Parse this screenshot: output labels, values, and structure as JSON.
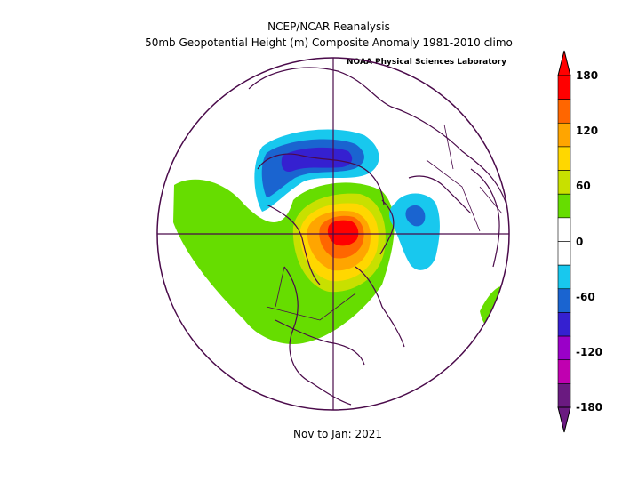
{
  "header": {
    "title": "NCEP/NCAR Reanalysis",
    "subtitle": "50mb Geopotential Height (m) Composite Anomaly 1981-2010 climo",
    "credit": "NOAA Physical Sciences Laboratory"
  },
  "footer": {
    "period": "Nov to Jan: 2021"
  },
  "colorbar": {
    "labels": [
      "180",
      "120",
      "60",
      "0",
      "-60",
      "-120",
      "-180"
    ],
    "colors": [
      "#ff0000",
      "#ff6600",
      "#ffa500",
      "#ffd700",
      "#c8e000",
      "#66dd00",
      "#ffffff",
      "#ffffff",
      "#18c8ee",
      "#1a64d0",
      "#3520d0",
      "#9a00c8",
      "#c000b0",
      "#6a1a80"
    ]
  },
  "map": {
    "projection": "north polar stereographic",
    "anomaly_colors": {
      "strong_pos": "#ff0000",
      "pos_150": "#ff6600",
      "pos_120": "#ffa500",
      "pos_90": "#ffd700",
      "pos_60": "#c8e000",
      "pos_30": "#66dd00",
      "neg_30": "#18c8ee",
      "neg_60": "#1a64d0",
      "neg_90": "#3520d0"
    }
  }
}
